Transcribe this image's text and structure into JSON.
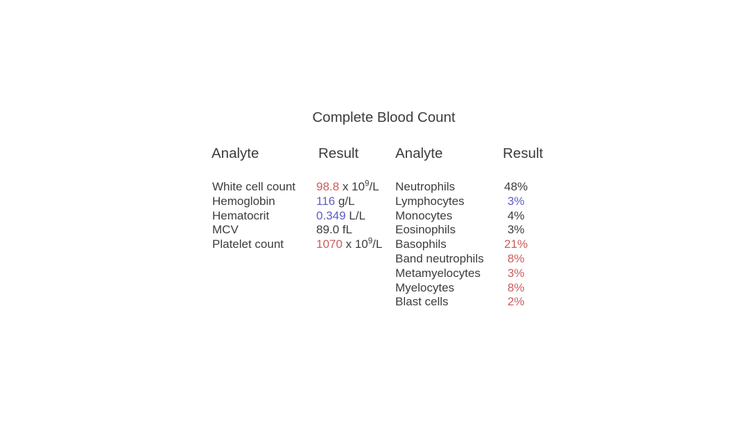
{
  "page": {
    "background": "#ffffff"
  },
  "colors": {
    "normal": "#3c3c3c",
    "high": "#cd5c5c",
    "low": "#5d5dc9"
  },
  "table": {
    "title": "Complete Blood Count",
    "headers": [
      "Analyte",
      "Result",
      "Analyte",
      "Result"
    ],
    "left_column": [
      {
        "label": "White cell count",
        "result": [
          {
            "t": "98.8",
            "c": "high"
          },
          {
            "t": " x 10",
            "c": "normal"
          },
          {
            "t": "9",
            "c": "normal",
            "sup": true
          },
          {
            "t": "/L",
            "c": "normal"
          }
        ]
      },
      {
        "label": "Hemoglobin",
        "result": [
          {
            "t": "116",
            "c": "low"
          },
          {
            "t": " g/L",
            "c": "normal"
          }
        ]
      },
      {
        "label": "Hematocrit",
        "result": [
          {
            "t": "0.349",
            "c": "low"
          },
          {
            "t": " L/L",
            "c": "normal"
          }
        ]
      },
      {
        "label": "MCV",
        "result": [
          {
            "t": "89.0 fL",
            "c": "normal"
          }
        ]
      },
      {
        "label": "Platelet count",
        "result": [
          {
            "t": "1070",
            "c": "high"
          },
          {
            "t": " x 10",
            "c": "normal"
          },
          {
            "t": "9",
            "c": "normal",
            "sup": true
          },
          {
            "t": "/L",
            "c": "normal"
          }
        ]
      }
    ],
    "right_column": [
      {
        "label": "Neutrophils",
        "result": [
          {
            "t": "48%",
            "c": "normal"
          }
        ]
      },
      {
        "label": "Lymphocytes",
        "result": [
          {
            "t": "3%",
            "c": "low"
          }
        ]
      },
      {
        "label": "Monocytes",
        "result": [
          {
            "t": "4%",
            "c": "normal"
          }
        ]
      },
      {
        "label": "Eosinophils",
        "result": [
          {
            "t": "3%",
            "c": "normal"
          }
        ]
      },
      {
        "label": "Basophils",
        "result": [
          {
            "t": "21%",
            "c": "high"
          }
        ]
      },
      {
        "label": "Band neutrophils",
        "result": [
          {
            "t": "8%",
            "c": "high"
          }
        ]
      },
      {
        "label": "Metamyelocytes",
        "result": [
          {
            "t": "3%",
            "c": "high"
          }
        ]
      },
      {
        "label": "Myelocytes",
        "result": [
          {
            "t": "8%",
            "c": "high"
          }
        ]
      },
      {
        "label": "Blast cells",
        "result": [
          {
            "t": "2%",
            "c": "high"
          }
        ]
      }
    ]
  }
}
